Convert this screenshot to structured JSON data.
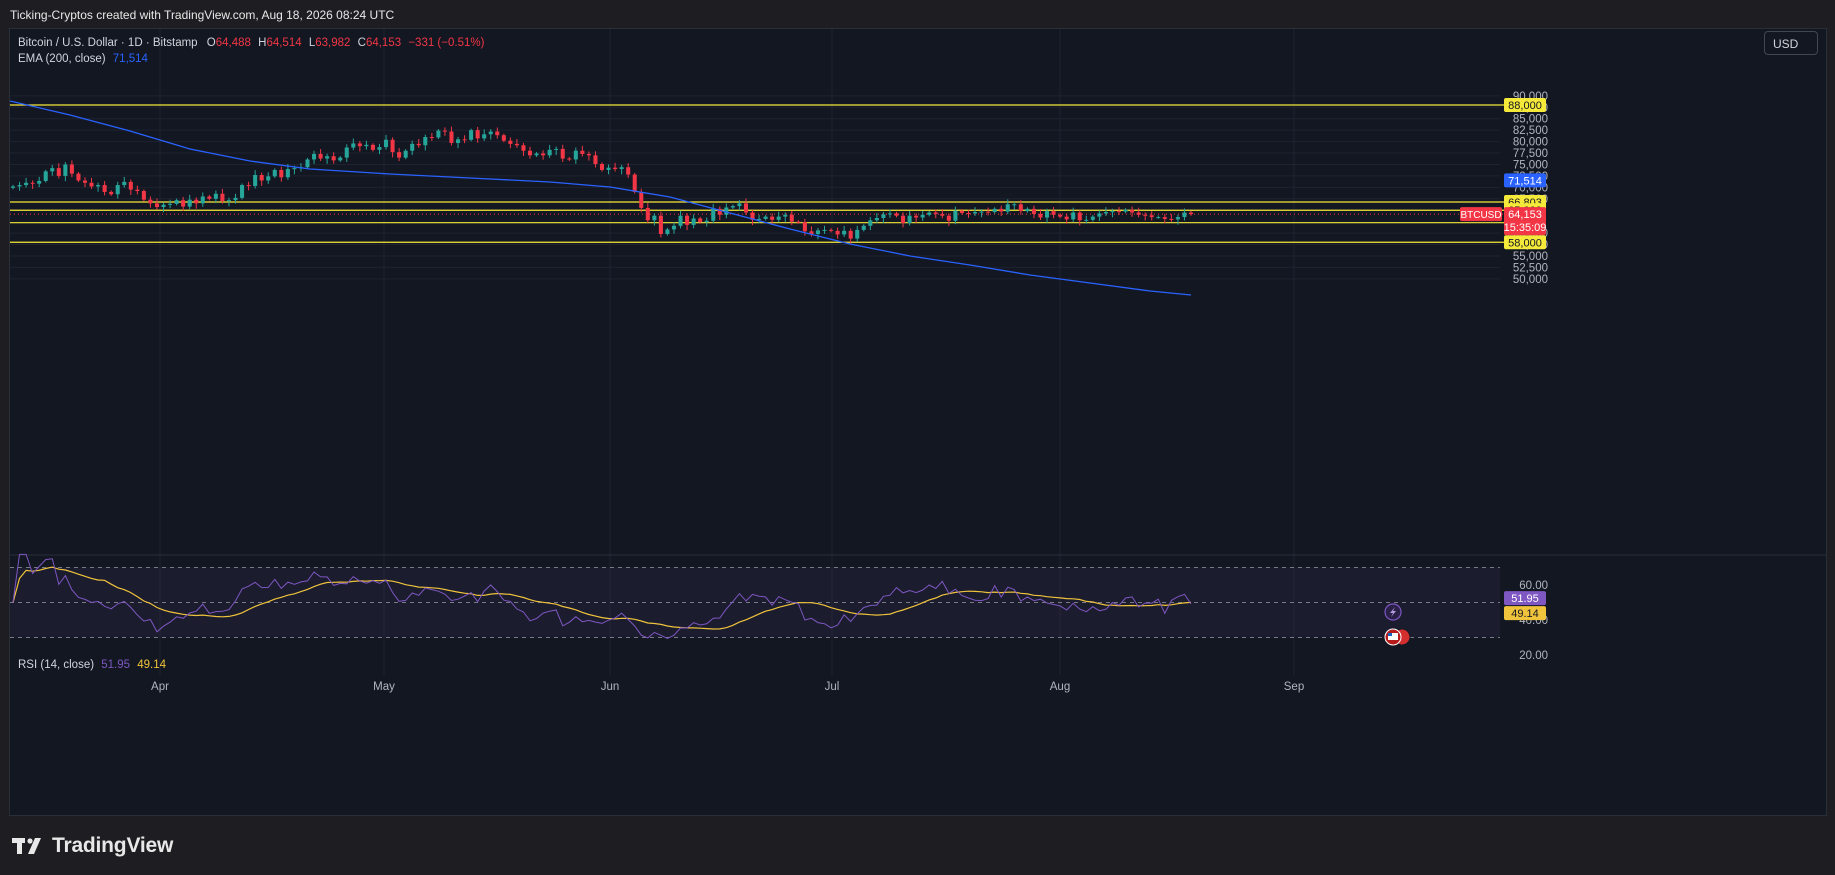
{
  "header": {
    "attribution": "Ticking-Cryptos created with TradingView.com, Aug 18, 2026 08:24 UTC"
  },
  "legend": {
    "symbol": "Bitcoin / U.S. Dollar · 1D · Bitstamp",
    "o_label": "O",
    "o_value": "64,488",
    "h_label": "H",
    "h_value": "64,514",
    "l_label": "L",
    "l_value": "63,982",
    "c_label": "C",
    "c_value": "64,153",
    "change": "−331 (−0.51%)",
    "ema_label": "EMA (200, close)",
    "ema_value": "71,514"
  },
  "rsi_legend": {
    "label": "RSI (14, close)",
    "rsi_value": "51.95",
    "ma_value": "49.14"
  },
  "currency_button": "USD",
  "price_axis": {
    "ticks": [
      "90,000",
      "87,500",
      "85,000",
      "82,500",
      "80,000",
      "77,500",
      "75,000",
      "72,500",
      "70,000",
      "67,500",
      "60,000",
      "57,500",
      "55,000",
      "52,500",
      "50,000"
    ]
  },
  "horizontal_levels": [
    {
      "label": "88,000",
      "value": 88000
    },
    {
      "label": "66,803",
      "value": 66803
    },
    {
      "label": "65,000",
      "value": 65000
    },
    {
      "label": "62,277",
      "value": 62277
    },
    {
      "label": "58,000",
      "value": 58000
    }
  ],
  "ema_tag": {
    "label": "71,514",
    "value": 71514
  },
  "price_tag": {
    "symbol": "BTCUSD",
    "price": "64,153",
    "countdown": "15:35:09",
    "value": 64153
  },
  "rsi_axis": {
    "ticks": [
      "60.00",
      "40.00",
      "20.00"
    ],
    "rsi_tag": "51.95",
    "ma_tag": "49.14"
  },
  "time_axis": {
    "labels": [
      "Apr",
      "May",
      "Jun",
      "Jul",
      "Aug",
      "Sep"
    ]
  },
  "footer": {
    "brand": "TradingView"
  },
  "colors": {
    "up": "#26a69a",
    "down": "#f23645",
    "ema": "#2962ff",
    "level": "#f5e93a",
    "rsi": "#7e57c2",
    "rsi_ma": "#f0c33c"
  },
  "chart_data": {
    "type": "candlestick",
    "title": "Bitcoin / U.S. Dollar · 1D · Bitstamp",
    "ylim": [
      48000,
      92500
    ],
    "ohlc_closes": [
      70200,
      70500,
      71000,
      70800,
      71400,
      73500,
      74200,
      72500,
      75000,
      73000,
      71500,
      71000,
      70200,
      70500,
      69000,
      68500,
      70500,
      71200,
      69500,
      69200,
      67300,
      66500,
      65700,
      66200,
      66400,
      67200,
      65800,
      67300,
      66500,
      68000,
      67500,
      68600,
      67000,
      67200,
      67700,
      70500,
      70300,
      72700,
      71500,
      72400,
      73800,
      72200,
      74000,
      74200,
      74400,
      76100,
      77300,
      76300,
      76800,
      75900,
      76500,
      78700,
      79600,
      79000,
      79300,
      78200,
      78800,
      80400,
      77700,
      76500,
      78000,
      79500,
      79200,
      81000,
      80900,
      82400,
      82200,
      79700,
      80500,
      80400,
      82500,
      80700,
      81600,
      82200,
      81400,
      80200,
      79500,
      79200,
      78000,
      77000,
      77400,
      77000,
      78200,
      78400,
      76300,
      76100,
      78000,
      77300,
      77000,
      75100,
      73800,
      74300,
      74000,
      74400,
      72800,
      69000,
      65500,
      62800,
      63800,
      59800,
      60800,
      61600,
      63800,
      61800,
      63200,
      62400,
      62700,
      65300,
      64000,
      65600,
      65900,
      66500,
      64500,
      62900,
      63100,
      63600,
      62900,
      63600,
      64000,
      62500,
      62400,
      60400,
      59800,
      60600,
      60700,
      60500,
      59700,
      60500,
      58800,
      60700,
      61600,
      62800,
      63300,
      64100,
      64300,
      63800,
      62200,
      63800,
      63400,
      64000,
      64500,
      64200,
      63800,
      62700,
      64900,
      64400,
      64300,
      64600,
      64700,
      64600,
      65300,
      64700,
      66300,
      66300,
      64800,
      65300,
      64200,
      63400,
      64800,
      64000,
      63600,
      63000,
      64500,
      62800,
      62900,
      63600,
      64300,
      64600,
      64800,
      64700,
      65100,
      64500,
      64000,
      63900,
      63500,
      63500,
      63100,
      63000,
      63500,
      64490,
      64153
    ]
  }
}
